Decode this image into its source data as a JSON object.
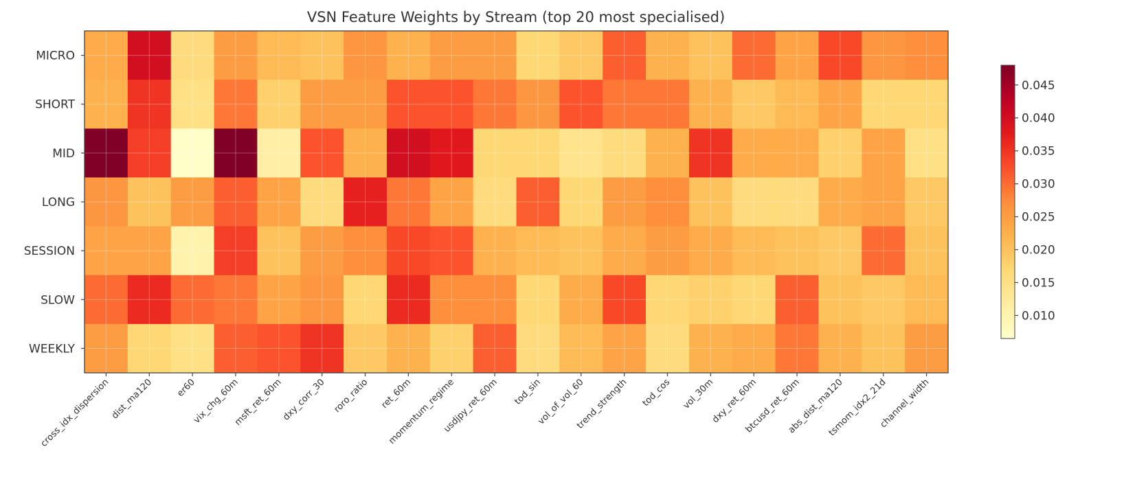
{
  "chart_data": {
    "type": "heatmap",
    "title": "VSN Feature Weights by Stream (top 20 most specialised)",
    "colormap": "YlOrRd",
    "vmin": 0.0065,
    "vmax": 0.048,
    "grid": true,
    "rows": [
      "MICRO",
      "SHORT",
      "MID",
      "LONG",
      "SESSION",
      "SLOW",
      "WEEKLY"
    ],
    "columns": [
      "cross_idx_dispersion",
      "dist_ma120",
      "er60",
      "vix_chg_60m",
      "msft_ret_60m",
      "dxy_corr_30",
      "roro_ratio",
      "ret_60m",
      "momentum_regime",
      "usdjpy_ret_60m",
      "tod_sin",
      "vol_of_vol_60",
      "trend_strength",
      "tod_cos",
      "vol_30m",
      "dxy_ret_60m",
      "btcusd_ret_60m",
      "abs_dist_ma120",
      "tsmom_idx2_21d",
      "channel_width"
    ],
    "values": [
      [
        0.023,
        0.04,
        0.016,
        0.025,
        0.021,
        0.02,
        0.026,
        0.022,
        0.025,
        0.025,
        0.017,
        0.019,
        0.031,
        0.022,
        0.02,
        0.03,
        0.024,
        0.033,
        0.026,
        0.027
      ],
      [
        0.022,
        0.035,
        0.015,
        0.029,
        0.018,
        0.025,
        0.025,
        0.032,
        0.032,
        0.029,
        0.026,
        0.032,
        0.029,
        0.029,
        0.022,
        0.019,
        0.021,
        0.024,
        0.017,
        0.017
      ],
      [
        0.048,
        0.034,
        0.007,
        0.048,
        0.011,
        0.032,
        0.022,
        0.04,
        0.038,
        0.017,
        0.017,
        0.014,
        0.016,
        0.022,
        0.035,
        0.023,
        0.023,
        0.018,
        0.024,
        0.015
      ],
      [
        0.026,
        0.02,
        0.025,
        0.031,
        0.024,
        0.016,
        0.037,
        0.029,
        0.024,
        0.016,
        0.031,
        0.017,
        0.025,
        0.027,
        0.02,
        0.016,
        0.016,
        0.023,
        0.024,
        0.019
      ],
      [
        0.024,
        0.024,
        0.01,
        0.034,
        0.02,
        0.025,
        0.027,
        0.033,
        0.032,
        0.022,
        0.021,
        0.02,
        0.023,
        0.025,
        0.023,
        0.021,
        0.02,
        0.019,
        0.03,
        0.02
      ],
      [
        0.03,
        0.036,
        0.03,
        0.029,
        0.024,
        0.026,
        0.017,
        0.036,
        0.027,
        0.027,
        0.017,
        0.023,
        0.033,
        0.017,
        0.018,
        0.017,
        0.031,
        0.02,
        0.019,
        0.021
      ],
      [
        0.025,
        0.017,
        0.015,
        0.031,
        0.032,
        0.035,
        0.019,
        0.022,
        0.018,
        0.031,
        0.016,
        0.021,
        0.024,
        0.016,
        0.022,
        0.023,
        0.029,
        0.022,
        0.02,
        0.025
      ]
    ],
    "colorbar_ticks": [
      "0.010",
      "0.015",
      "0.020",
      "0.025",
      "0.030",
      "0.035",
      "0.040",
      "0.045"
    ]
  }
}
